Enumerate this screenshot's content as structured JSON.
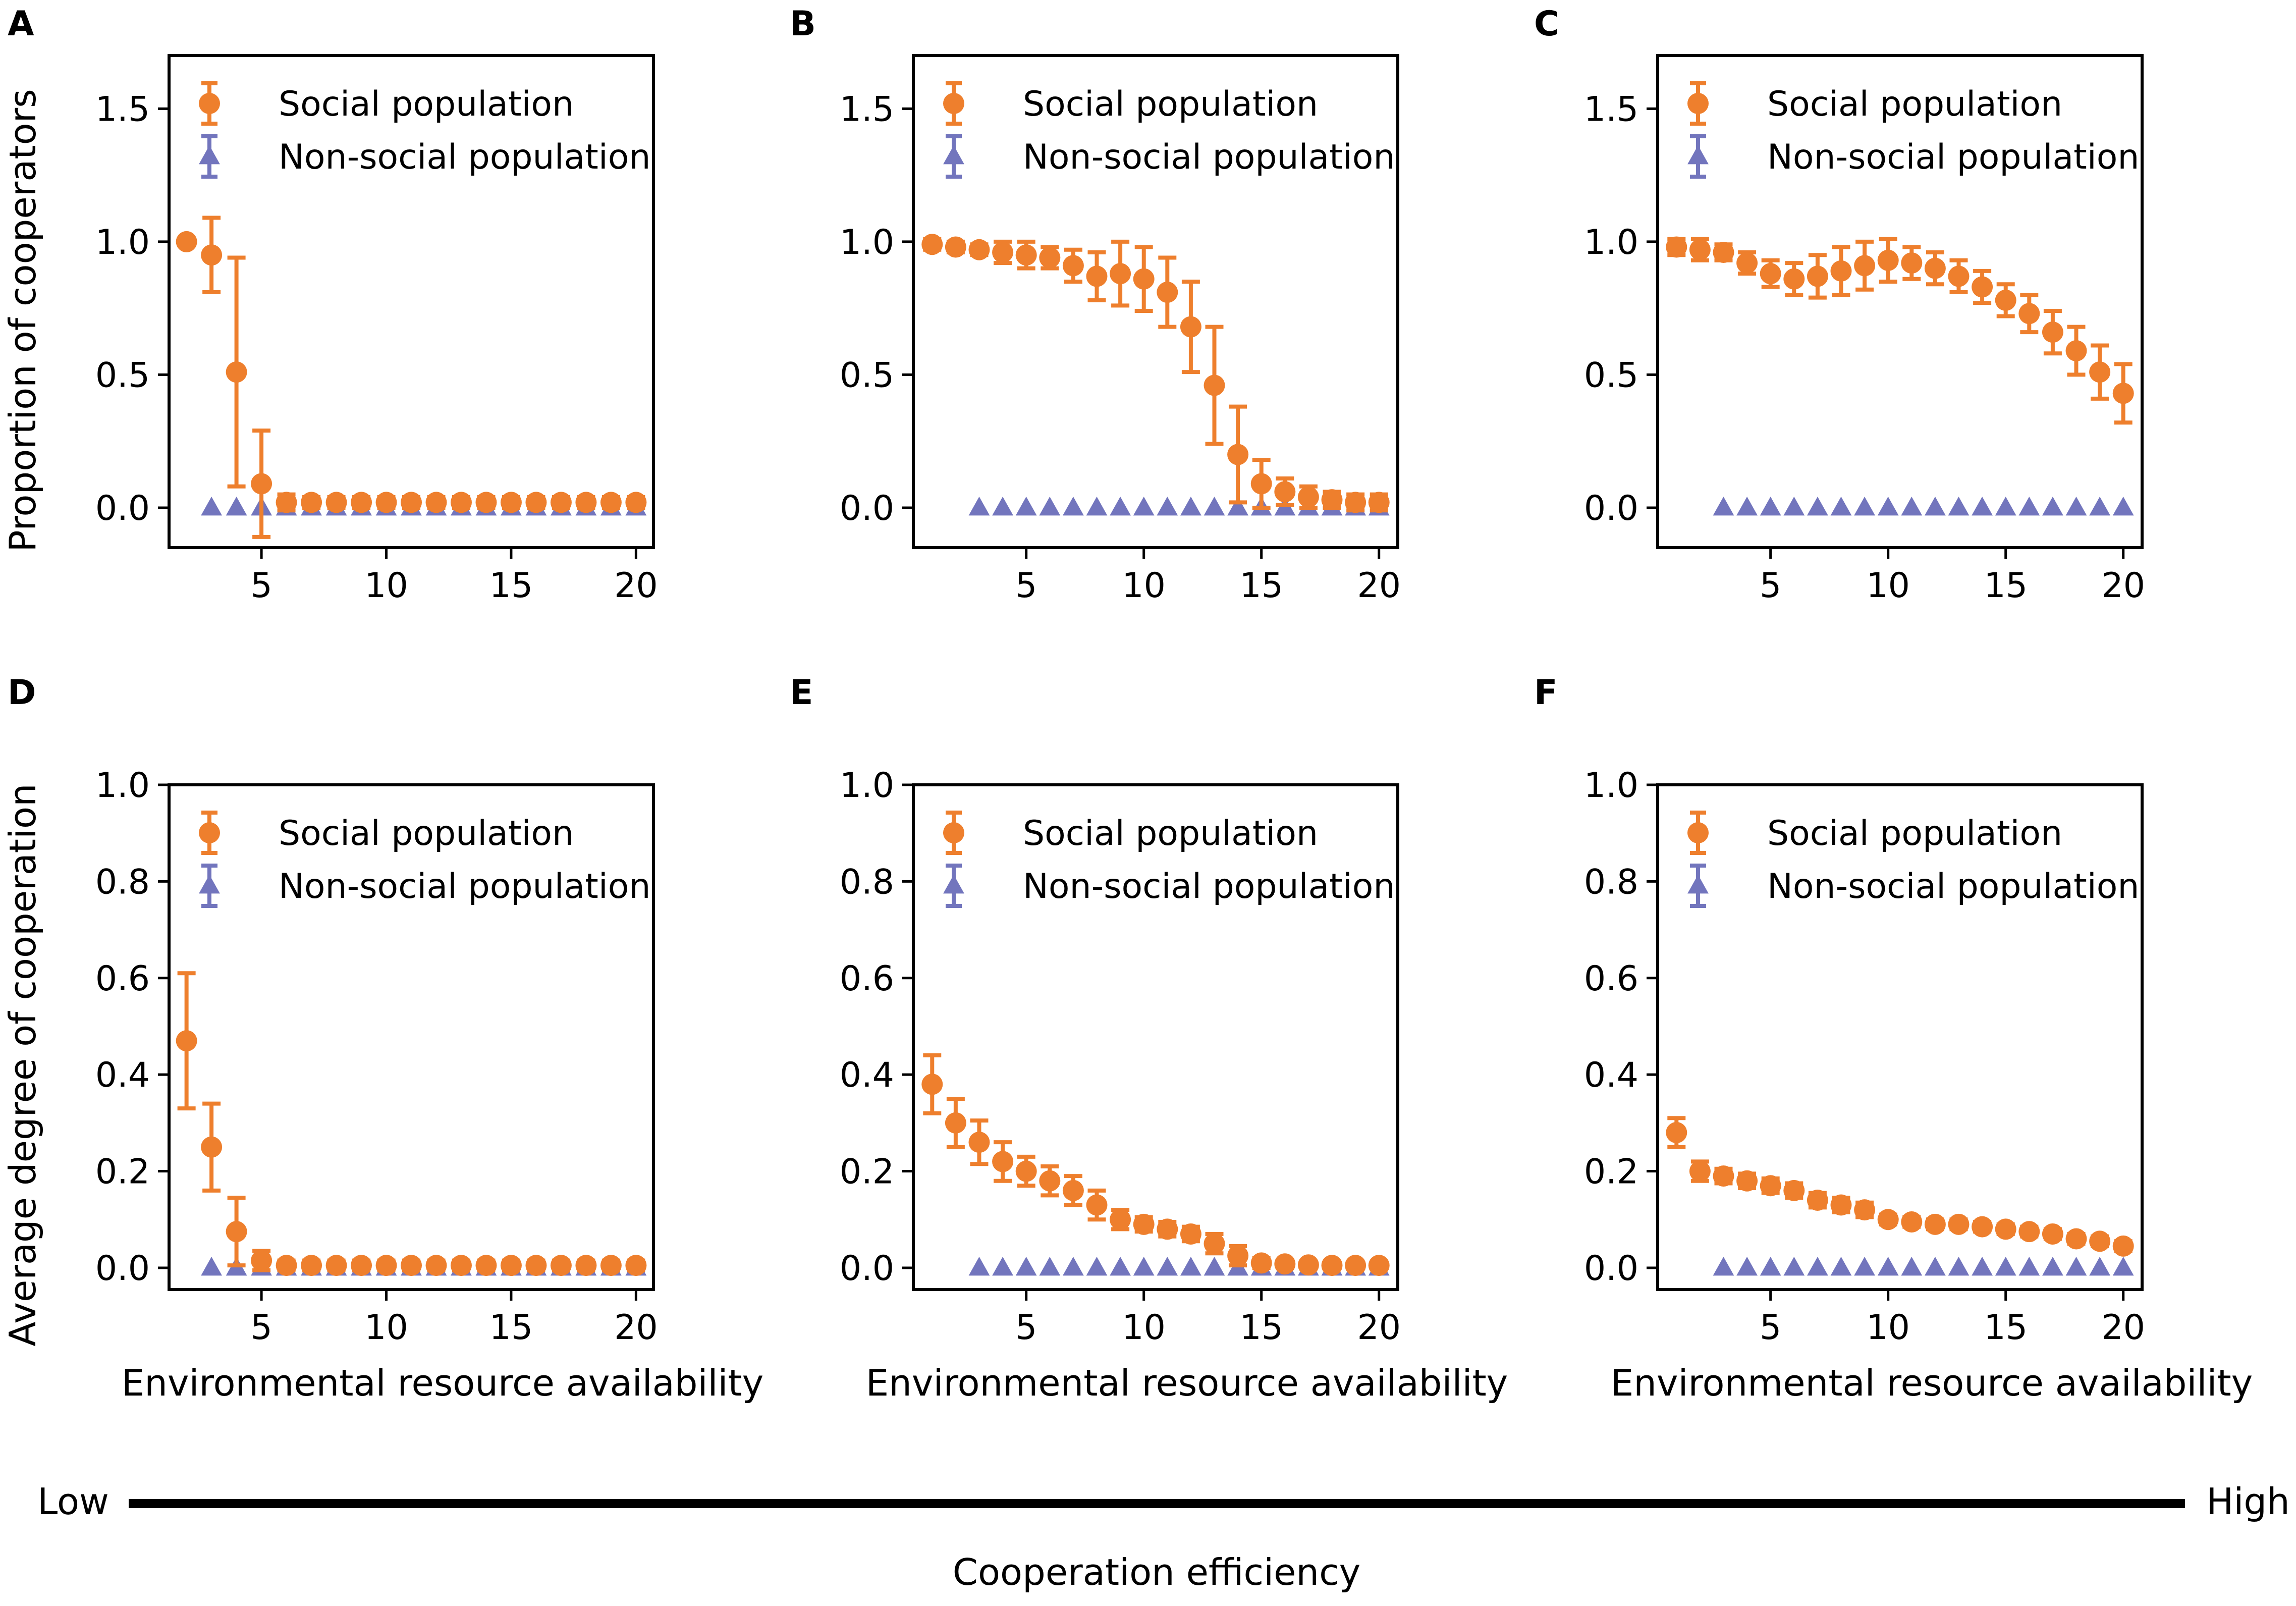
{
  "figure": {
    "ylabel_top": "Proportion of cooperators",
    "ylabel_bottom": "Average degree of cooperation",
    "xlabel": "Environmental resource availability",
    "efficiency_low": "Low",
    "efficiency_high": "High",
    "efficiency_label": "Cooperation efficiency"
  },
  "colors": {
    "social": "#EE7F2D",
    "nonsocial": "#7275BD"
  },
  "chart_data": [
    {
      "panel": "A",
      "type": "scatter",
      "xlim": [
        1.3,
        20.7
      ],
      "ylim": [
        -0.15,
        1.7
      ],
      "yticks": [
        0.0,
        0.5,
        1.0,
        1.5
      ],
      "ytick_labels": [
        "0.0",
        "0.5",
        "1.0",
        "1.5"
      ],
      "xticks": [
        5,
        10,
        15,
        20
      ],
      "xtick_labels": [
        "5",
        "10",
        "15",
        "20"
      ],
      "legend": [
        "Social population",
        "Non-social population"
      ],
      "series": [
        {
          "name": "Social population",
          "x": [
            2,
            3,
            4,
            5,
            6,
            7,
            8,
            9,
            10,
            11,
            12,
            13,
            14,
            15,
            16,
            17,
            18,
            19,
            20
          ],
          "y": [
            1.0,
            0.95,
            0.51,
            0.09,
            0.02,
            0.02,
            0.02,
            0.02,
            0.02,
            0.02,
            0.02,
            0.02,
            0.02,
            0.02,
            0.02,
            0.02,
            0.02,
            0.02,
            0.02
          ],
          "err": [
            0,
            0.14,
            0.43,
            0.2,
            0.03,
            0.02,
            0.02,
            0.02,
            0.02,
            0.02,
            0.02,
            0.02,
            0.02,
            0.02,
            0.02,
            0.02,
            0.02,
            0.02,
            0.02
          ]
        },
        {
          "name": "Non-social population",
          "x": [
            3,
            4,
            5,
            6,
            7,
            8,
            9,
            10,
            11,
            12,
            13,
            14,
            15,
            16,
            17,
            18,
            19,
            20
          ],
          "y": [
            0,
            0,
            0,
            0,
            0,
            0,
            0,
            0,
            0,
            0,
            0,
            0,
            0,
            0,
            0,
            0,
            0,
            0
          ]
        }
      ]
    },
    {
      "panel": "B",
      "type": "scatter",
      "xlim": [
        0.2,
        20.8
      ],
      "ylim": [
        -0.15,
        1.7
      ],
      "yticks": [
        0.0,
        0.5,
        1.0,
        1.5
      ],
      "ytick_labels": [
        "0.0",
        "0.5",
        "1.0",
        "1.5"
      ],
      "xticks": [
        5,
        10,
        15,
        20
      ],
      "xtick_labels": [
        "5",
        "10",
        "15",
        "20"
      ],
      "legend": [
        "Social population",
        "Non-social population"
      ],
      "series": [
        {
          "name": "Social population",
          "x": [
            1,
            2,
            3,
            4,
            5,
            6,
            7,
            8,
            9,
            10,
            11,
            12,
            13,
            14,
            15,
            16,
            17,
            18,
            19,
            20
          ],
          "y": [
            0.99,
            0.98,
            0.97,
            0.96,
            0.95,
            0.94,
            0.91,
            0.87,
            0.88,
            0.86,
            0.81,
            0.68,
            0.46,
            0.2,
            0.09,
            0.06,
            0.04,
            0.03,
            0.02,
            0.02
          ],
          "err": [
            0.02,
            0.02,
            0.02,
            0.04,
            0.05,
            0.04,
            0.06,
            0.09,
            0.12,
            0.12,
            0.13,
            0.17,
            0.22,
            0.18,
            0.09,
            0.05,
            0.04,
            0.03,
            0.03,
            0.03
          ]
        },
        {
          "name": "Non-social population",
          "x": [
            3,
            4,
            5,
            6,
            7,
            8,
            9,
            10,
            11,
            12,
            13,
            14,
            15,
            16,
            17,
            18,
            19,
            20
          ],
          "y": [
            0,
            0,
            0,
            0,
            0,
            0,
            0,
            0,
            0,
            0,
            0,
            0,
            0,
            0,
            0,
            0,
            0,
            0
          ]
        }
      ]
    },
    {
      "panel": "C",
      "type": "scatter",
      "xlim": [
        0.2,
        20.8
      ],
      "ylim": [
        -0.15,
        1.7
      ],
      "yticks": [
        0.0,
        0.5,
        1.0,
        1.5
      ],
      "ytick_labels": [
        "0.0",
        "0.5",
        "1.0",
        "1.5"
      ],
      "xticks": [
        5,
        10,
        15,
        20
      ],
      "xtick_labels": [
        "5",
        "10",
        "15",
        "20"
      ],
      "legend": [
        "Social population",
        "Non-social population"
      ],
      "series": [
        {
          "name": "Social population",
          "x": [
            1,
            2,
            3,
            4,
            5,
            6,
            7,
            8,
            9,
            10,
            11,
            12,
            13,
            14,
            15,
            16,
            17,
            18,
            19,
            20
          ],
          "y": [
            0.98,
            0.97,
            0.96,
            0.92,
            0.88,
            0.86,
            0.87,
            0.89,
            0.91,
            0.93,
            0.92,
            0.9,
            0.87,
            0.83,
            0.78,
            0.73,
            0.66,
            0.59,
            0.51,
            0.43
          ],
          "err": [
            0.03,
            0.04,
            0.03,
            0.04,
            0.05,
            0.06,
            0.08,
            0.09,
            0.09,
            0.08,
            0.06,
            0.06,
            0.06,
            0.06,
            0.06,
            0.07,
            0.08,
            0.09,
            0.1,
            0.11
          ]
        },
        {
          "name": "Non-social population",
          "x": [
            3,
            4,
            5,
            6,
            7,
            8,
            9,
            10,
            11,
            12,
            13,
            14,
            15,
            16,
            17,
            18,
            19,
            20
          ],
          "y": [
            0,
            0,
            0,
            0,
            0,
            0,
            0,
            0,
            0,
            0,
            0,
            0,
            0,
            0,
            0,
            0,
            0,
            0
          ]
        }
      ]
    },
    {
      "panel": "D",
      "type": "scatter",
      "xlim": [
        1.3,
        20.7
      ],
      "ylim": [
        -0.045,
        1.0
      ],
      "yticks": [
        0.0,
        0.2,
        0.4,
        0.6,
        0.8,
        1.0
      ],
      "ytick_labels": [
        "0.0",
        "0.2",
        "0.4",
        "0.6",
        "0.8",
        "1.0"
      ],
      "xticks": [
        5,
        10,
        15,
        20
      ],
      "xtick_labels": [
        "5",
        "10",
        "15",
        "20"
      ],
      "legend": [
        "Social population",
        "Non-social population"
      ],
      "series": [
        {
          "name": "Social population",
          "x": [
            2,
            3,
            4,
            5,
            6,
            7,
            8,
            9,
            10,
            11,
            12,
            13,
            14,
            15,
            16,
            17,
            18,
            19,
            20
          ],
          "y": [
            0.47,
            0.25,
            0.075,
            0.015,
            0.005,
            0.005,
            0.005,
            0.005,
            0.005,
            0.005,
            0.005,
            0.005,
            0.005,
            0.005,
            0.005,
            0.005,
            0.005,
            0.005,
            0.005
          ],
          "err": [
            0.14,
            0.09,
            0.07,
            0.02,
            0.01,
            0.01,
            0.01,
            0.01,
            0.01,
            0.01,
            0.01,
            0.01,
            0.01,
            0.01,
            0.01,
            0.01,
            0.01,
            0.01,
            0.01
          ]
        },
        {
          "name": "Non-social population",
          "x": [
            3,
            4,
            5,
            6,
            7,
            8,
            9,
            10,
            11,
            12,
            13,
            14,
            15,
            16,
            17,
            18,
            19,
            20
          ],
          "y": [
            0,
            0,
            0,
            0,
            0,
            0,
            0,
            0,
            0,
            0,
            0,
            0,
            0,
            0,
            0,
            0,
            0,
            0
          ]
        }
      ]
    },
    {
      "panel": "E",
      "type": "scatter",
      "xlim": [
        0.2,
        20.8
      ],
      "ylim": [
        -0.045,
        1.0
      ],
      "yticks": [
        0.0,
        0.2,
        0.4,
        0.6,
        0.8,
        1.0
      ],
      "ytick_labels": [
        "0.0",
        "0.2",
        "0.4",
        "0.6",
        "0.8",
        "1.0"
      ],
      "xticks": [
        5,
        10,
        15,
        20
      ],
      "xtick_labels": [
        "5",
        "10",
        "15",
        "20"
      ],
      "legend": [
        "Social population",
        "Non-social population"
      ],
      "series": [
        {
          "name": "Social population",
          "x": [
            1,
            2,
            3,
            4,
            5,
            6,
            7,
            8,
            9,
            10,
            11,
            12,
            13,
            14,
            15,
            16,
            17,
            18,
            19,
            20
          ],
          "y": [
            0.38,
            0.3,
            0.26,
            0.22,
            0.2,
            0.18,
            0.16,
            0.13,
            0.1,
            0.09,
            0.08,
            0.07,
            0.05,
            0.025,
            0.01,
            0.008,
            0.006,
            0.005,
            0.005,
            0.005
          ],
          "err": [
            0.06,
            0.05,
            0.045,
            0.04,
            0.03,
            0.03,
            0.03,
            0.03,
            0.02,
            0.015,
            0.015,
            0.015,
            0.02,
            0.02,
            0.01,
            0.008,
            0.006,
            0.005,
            0.005,
            0.005
          ]
        },
        {
          "name": "Non-social population",
          "x": [
            3,
            4,
            5,
            6,
            7,
            8,
            9,
            10,
            11,
            12,
            13,
            14,
            15,
            16,
            17,
            18,
            19,
            20
          ],
          "y": [
            0,
            0,
            0,
            0,
            0,
            0,
            0,
            0,
            0,
            0,
            0,
            0,
            0,
            0,
            0,
            0,
            0,
            0
          ]
        }
      ]
    },
    {
      "panel": "F",
      "type": "scatter",
      "xlim": [
        0.2,
        20.8
      ],
      "ylim": [
        -0.045,
        1.0
      ],
      "yticks": [
        0.0,
        0.2,
        0.4,
        0.6,
        0.8,
        1.0
      ],
      "ytick_labels": [
        "0.0",
        "0.2",
        "0.4",
        "0.6",
        "0.8",
        "1.0"
      ],
      "xticks": [
        5,
        10,
        15,
        20
      ],
      "xtick_labels": [
        "5",
        "10",
        "15",
        "20"
      ],
      "legend": [
        "Social population",
        "Non-social population"
      ],
      "series": [
        {
          "name": "Social population",
          "x": [
            1,
            2,
            3,
            4,
            5,
            6,
            7,
            8,
            9,
            10,
            11,
            12,
            13,
            14,
            15,
            16,
            17,
            18,
            19,
            20
          ],
          "y": [
            0.28,
            0.2,
            0.19,
            0.18,
            0.17,
            0.16,
            0.14,
            0.13,
            0.12,
            0.1,
            0.095,
            0.09,
            0.09,
            0.085,
            0.08,
            0.075,
            0.07,
            0.06,
            0.055,
            0.045
          ],
          "err": [
            0.03,
            0.02,
            0.015,
            0.015,
            0.015,
            0.015,
            0.015,
            0.015,
            0.015,
            0.01,
            0.01,
            0.01,
            0.01,
            0.01,
            0.01,
            0.01,
            0.01,
            0.01,
            0.01,
            0.01
          ]
        },
        {
          "name": "Non-social population",
          "x": [
            3,
            4,
            5,
            6,
            7,
            8,
            9,
            10,
            11,
            12,
            13,
            14,
            15,
            16,
            17,
            18,
            19,
            20
          ],
          "y": [
            0,
            0,
            0,
            0,
            0,
            0,
            0,
            0,
            0,
            0,
            0,
            0,
            0,
            0,
            0,
            0,
            0,
            0
          ]
        }
      ]
    }
  ]
}
